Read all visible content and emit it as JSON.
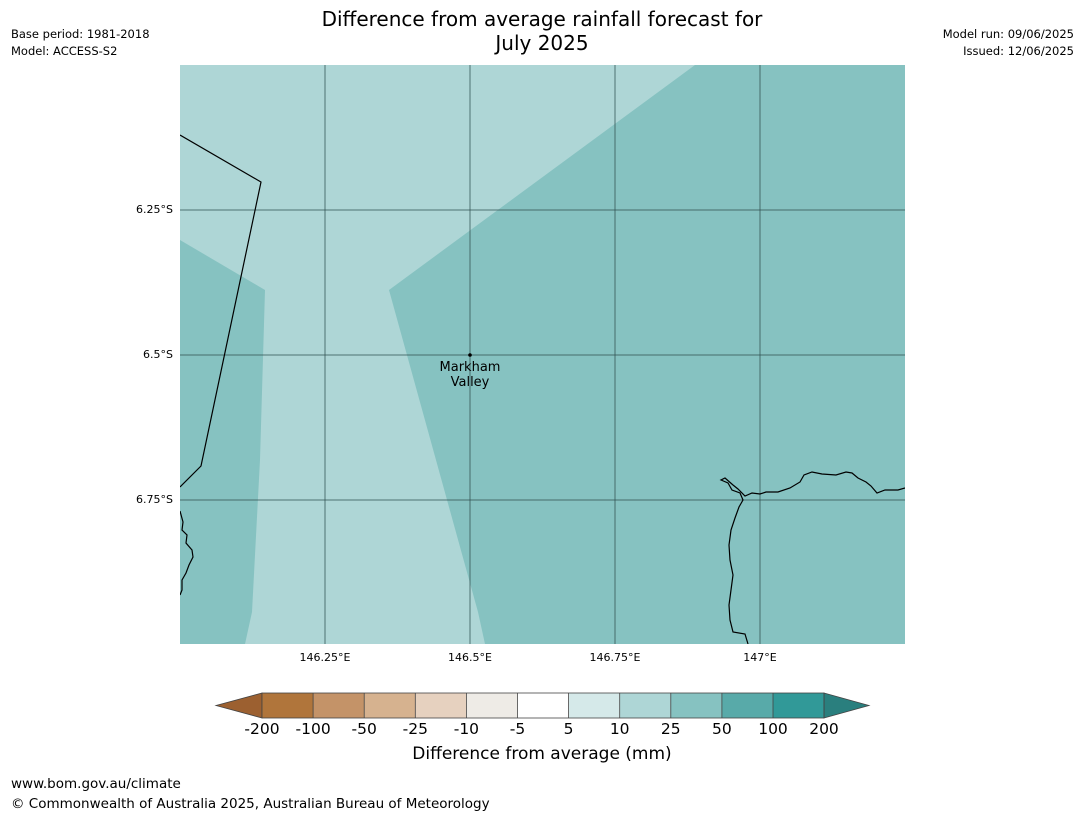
{
  "title_line1": "Difference from average rainfall forecast for",
  "title_line2": "July 2025",
  "meta_left": {
    "line1": "Base period: 1981-2018",
    "line2": "Model: ACCESS-S2"
  },
  "meta_right": {
    "line1": "Model run: 09/06/2025",
    "line2": "Issued: 12/06/2025"
  },
  "map": {
    "lat_ticks": [
      "6.25°S",
      "6.5°S",
      "6.75°S"
    ],
    "lon_ticks": [
      "146.25°E",
      "146.5°E",
      "146.75°E",
      "147°E"
    ],
    "place_label_line1": "Markham",
    "place_label_line2": "Valley",
    "region_colors": {
      "light": "#aed6d6",
      "medium": "#86c2c1"
    }
  },
  "colorbar": {
    "title": "Difference from average (mm)",
    "tick_labels": [
      "-200",
      "-100",
      "-50",
      "-25",
      "-10",
      "-5",
      "5",
      "10",
      "25",
      "50",
      "100",
      "200"
    ],
    "colors": [
      "#9c6030",
      "#b0753b",
      "#c49368",
      "#d6b28f",
      "#e6d1bf",
      "#eeebe6",
      "#ffffff",
      "#d5e9e9",
      "#aed6d6",
      "#86c2c1",
      "#58aaa9",
      "#319998",
      "#2a7f7e"
    ]
  },
  "footer": {
    "line1": "www.bom.gov.au/climate",
    "line2": "© Commonwealth of Australia 2025, Australian Bureau of Meteorology"
  }
}
